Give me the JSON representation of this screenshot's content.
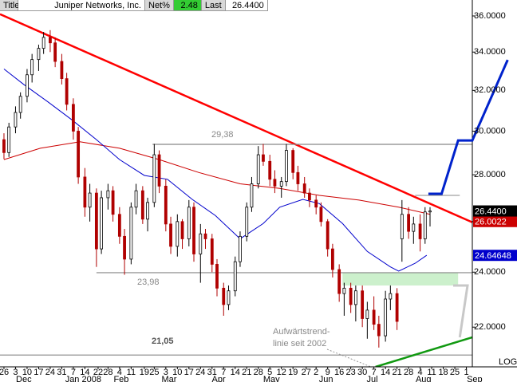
{
  "header": {
    "title_label": "Title",
    "name": "Juniper Networks, Inc.",
    "net_label": "Net%",
    "net_value": "2.48",
    "last_label": "Last",
    "last_value": "26.4400"
  },
  "chart_data": {
    "type": "candlestick",
    "log_scale": true,
    "up_color": "#ffffff",
    "down_color": "#b00000",
    "ylim": [
      20.66,
      36.92
    ],
    "xlim": [
      -2.4,
      283.6
    ],
    "yticks": [
      {
        "value": 36,
        "label": "36.0000"
      },
      {
        "value": 34,
        "label": "34.0000"
      },
      {
        "value": 32,
        "label": "32.0000"
      },
      {
        "value": 30,
        "label": "30.0000"
      },
      {
        "value": 28,
        "label": "28.0000"
      },
      {
        "value": 26,
        "label": "26.0000"
      },
      {
        "value": 24,
        "label": "24.0000"
      },
      {
        "value": 22,
        "label": "22.0000"
      }
    ],
    "xticks": [
      {
        "value": 0,
        "label": "26"
      },
      {
        "value": 7,
        "label": "3"
      },
      {
        "value": 14,
        "label": "10"
      },
      {
        "value": 21,
        "label": "17"
      },
      {
        "value": 28,
        "label": "24"
      },
      {
        "value": 35,
        "label": "31"
      },
      {
        "value": 42,
        "label": "7"
      },
      {
        "value": 49,
        "label": "14"
      },
      {
        "value": 57,
        "label": "22"
      },
      {
        "value": 63,
        "label": "28"
      },
      {
        "value": 70,
        "label": "4"
      },
      {
        "value": 77,
        "label": "11"
      },
      {
        "value": 85,
        "label": "19"
      },
      {
        "value": 91,
        "label": "25"
      },
      {
        "value": 98,
        "label": "3"
      },
      {
        "value": 105,
        "label": "10"
      },
      {
        "value": 112,
        "label": "17"
      },
      {
        "value": 119,
        "label": "24"
      },
      {
        "value": 126,
        "label": "31"
      },
      {
        "value": 133,
        "label": "7"
      },
      {
        "value": 140,
        "label": "14"
      },
      {
        "value": 147,
        "label": "21"
      },
      {
        "value": 154,
        "label": "28"
      },
      {
        "value": 161,
        "label": "5"
      },
      {
        "value": 168,
        "label": "12"
      },
      {
        "value": 175,
        "label": "19"
      },
      {
        "value": 183,
        "label": "27"
      },
      {
        "value": 189,
        "label": "2"
      },
      {
        "value": 196,
        "label": "9"
      },
      {
        "value": 203,
        "label": "16"
      },
      {
        "value": 210,
        "label": "23"
      },
      {
        "value": 217,
        "label": "30"
      },
      {
        "value": 224,
        "label": "7"
      },
      {
        "value": 231,
        "label": "14"
      },
      {
        "value": 238,
        "label": "21"
      },
      {
        "value": 245,
        "label": "28"
      },
      {
        "value": 252,
        "label": "4"
      },
      {
        "value": 259,
        "label": "11"
      },
      {
        "value": 266,
        "label": "18"
      },
      {
        "value": 273,
        "label": "25"
      },
      {
        "value": 280,
        "label": "1"
      }
    ],
    "xmonths": [
      {
        "value": 12,
        "label": "Dec"
      },
      {
        "value": 48,
        "label": "Jan 2008"
      },
      {
        "value": 71,
        "label": "Feb"
      },
      {
        "value": 100,
        "label": "Mar"
      },
      {
        "value": 130,
        "label": "Apr"
      },
      {
        "value": 162,
        "label": "May"
      },
      {
        "value": 195,
        "label": "Jun"
      },
      {
        "value": 223,
        "label": "Jul"
      },
      {
        "value": 254,
        "label": "Aug"
      },
      {
        "value": 285,
        "label": "Sep"
      }
    ],
    "x": [
      0,
      3,
      7,
      10,
      14,
      17,
      21,
      24,
      28,
      31,
      35,
      38,
      42,
      45,
      49,
      52,
      56,
      59,
      63,
      66,
      70,
      73,
      77,
      80,
      84,
      87,
      91,
      94,
      98,
      101,
      105,
      108,
      112,
      115,
      119,
      122,
      126,
      129,
      133,
      136,
      140,
      143,
      147,
      150,
      154,
      157,
      161,
      164,
      168,
      171,
      175,
      178,
      182,
      185,
      189,
      192,
      196,
      199,
      203,
      206,
      210,
      213,
      217,
      220,
      224,
      227,
      231,
      234,
      238,
      241,
      245,
      248,
      252,
      255,
      258
    ],
    "open": [
      29.6,
      29.0,
      30.2,
      30.9,
      31.7,
      32.8,
      33.6,
      34.2,
      34.8,
      34.5,
      33.5,
      32.6,
      31.3,
      30.0,
      27.9,
      26.6,
      27.2,
      24.9,
      27.0,
      27.3,
      26.3,
      25.4,
      24.5,
      26.6,
      27.3,
      26.1,
      26.8,
      28.9,
      27.5,
      25.9,
      25.0,
      26.0,
      25.3,
      26.6,
      24.7,
      25.5,
      25.3,
      24.3,
      23.4,
      22.8,
      23.3,
      24.4,
      25.4,
      26.6,
      27.6,
      28.9,
      28.6,
      27.8,
      27.5,
      27.7,
      29.1,
      28.1,
      27.6,
      27.2,
      26.9,
      26.6,
      26.0,
      24.9,
      24.1,
      23.2,
      23.4,
      22.8,
      23.3,
      22.3,
      22.6,
      22.1,
      21.7,
      23.0,
      23.2,
      25.3,
      26.3,
      25.6,
      25.9,
      25.3,
      26.4
    ],
    "high": [
      29.9,
      30.4,
      31.2,
      31.9,
      33.1,
      33.9,
      34.4,
      35.1,
      35.2,
      34.8,
      33.9,
      32.9,
      31.6,
      30.2,
      28.3,
      27.6,
      27.4,
      27.3,
      27.6,
      27.5,
      26.6,
      25.7,
      26.8,
      27.6,
      27.5,
      27.0,
      29.4,
      29.1,
      27.8,
      26.2,
      26.3,
      26.1,
      26.9,
      26.8,
      25.9,
      25.7,
      25.5,
      24.5,
      23.6,
      23.5,
      24.6,
      25.6,
      26.8,
      27.9,
      29.3,
      29.4,
      28.9,
      28.2,
      27.9,
      29.4,
      29.2,
      28.4,
      27.9,
      27.4,
      27.1,
      26.8,
      26.1,
      25.1,
      24.3,
      23.6,
      23.6,
      23.5,
      23.5,
      22.9,
      23.1,
      22.4,
      23.3,
      23.5,
      23.4,
      26.9,
      26.6,
      26.2,
      26.3,
      26.6,
      26.6
    ],
    "low": [
      28.7,
      28.8,
      29.9,
      30.6,
      31.4,
      32.4,
      33.0,
      33.9,
      34.0,
      33.2,
      32.3,
      31.0,
      29.6,
      27.6,
      26.2,
      26.0,
      24.2,
      24.7,
      26.5,
      26.0,
      25.1,
      23.9,
      24.3,
      26.3,
      25.9,
      25.6,
      26.6,
      27.2,
      25.6,
      24.7,
      24.6,
      24.9,
      25.0,
      24.4,
      23.6,
      24.9,
      24.0,
      23.1,
      22.4,
      22.6,
      23.1,
      24.2,
      25.2,
      26.4,
      27.4,
      28.4,
      27.5,
      27.2,
      27.0,
      27.5,
      27.8,
      27.3,
      27.0,
      26.6,
      26.3,
      25.8,
      24.6,
      23.8,
      22.9,
      22.4,
      22.5,
      22.2,
      22.0,
      21.6,
      21.9,
      21.3,
      21.5,
      22.6,
      21.9,
      24.4,
      25.3,
      25.1,
      24.8,
      25.1,
      25.8
    ],
    "close": [
      29.0,
      30.2,
      30.9,
      31.7,
      32.8,
      33.6,
      34.2,
      34.8,
      34.5,
      33.5,
      32.6,
      31.3,
      30.0,
      27.9,
      26.6,
      27.2,
      24.9,
      27.0,
      27.3,
      26.3,
      25.4,
      24.5,
      26.6,
      27.3,
      26.1,
      26.8,
      28.9,
      27.5,
      25.9,
      25.0,
      26.0,
      25.3,
      26.6,
      24.7,
      25.5,
      25.3,
      24.3,
      23.4,
      22.8,
      23.3,
      24.4,
      25.4,
      26.6,
      27.6,
      28.9,
      28.6,
      27.8,
      27.5,
      27.7,
      29.1,
      28.1,
      27.6,
      27.2,
      26.9,
      26.6,
      26.0,
      24.9,
      24.1,
      23.2,
      23.4,
      22.8,
      23.3,
      22.3,
      22.6,
      22.1,
      21.7,
      23.0,
      23.2,
      22.2,
      26.3,
      25.6,
      25.9,
      25.3,
      26.4,
      26.44
    ],
    "series": [
      {
        "color": "#cc0000",
        "x": [
          0,
          22,
          46,
          70,
          94,
          118,
          143,
          167,
          191,
          215,
          239,
          258
        ],
        "values": [
          28.68,
          29.2,
          29.5,
          29.2,
          28.68,
          28.1,
          27.6,
          27.4,
          27.1,
          26.9,
          26.6,
          26.3
        ]
      },
      {
        "color": "#0000cc",
        "x": [
          0,
          12,
          27,
          41,
          56,
          70,
          85,
          99,
          114,
          128,
          143,
          157,
          167,
          181,
          191,
          205,
          220,
          234,
          239,
          249,
          256
        ],
        "values": [
          33.1,
          32.3,
          31.4,
          30.55,
          29.6,
          28.68,
          27.97,
          27.8,
          26.93,
          26.25,
          25.3,
          25.92,
          26.6,
          26.93,
          26.75,
          25.92,
          24.8,
          24.2,
          24.04,
          24.34,
          24.65
        ]
      }
    ],
    "lines": [
      {
        "color": "#ff0000",
        "width": 2.5,
        "x": [
          -2.4,
          283.6
        ],
        "values": [
          36.1,
          25.97
        ]
      },
      {
        "color": "#888888",
        "width": 1.2,
        "x": [
          90,
          283.6
        ],
        "values": [
          29.38,
          29.38
        ]
      },
      {
        "color": "#888888",
        "width": 1.2,
        "x": [
          56,
          283.6
        ],
        "values": [
          23.98,
          23.98
        ]
      },
      {
        "color": "#888888",
        "width": 1.2,
        "x": [
          -2.4,
          283.6
        ],
        "values": [
          21.05,
          21.05
        ]
      },
      {
        "color": "#888888",
        "width": 1,
        "x": [
          249,
          276
        ],
        "values": [
          27.1,
          27.1
        ]
      },
      {
        "color": "#119911",
        "width": 2.5,
        "x": [
          225,
          283.6
        ],
        "values": [
          20.66,
          21.65
        ]
      }
    ],
    "zone": {
      "color": "#ccf0cc",
      "x": [
        205,
        275
      ],
      "values": [
        23.98,
        23.5
      ]
    },
    "projections": [
      {
        "color": "#0022cc",
        "width": 3,
        "x": [
          257,
          265,
          275,
          283.6,
          305
        ],
        "values": [
          27.17,
          27.17,
          29.56,
          29.56,
          33.58
        ]
      },
      {
        "color": "#c8c8c8",
        "width": 3,
        "x": [
          272,
          280.7,
          276
        ],
        "values": [
          23.5,
          23.5,
          21.65
        ]
      }
    ],
    "price_labels": [
      {
        "value": 26.0022,
        "color": "#cc0000"
      },
      {
        "value": 26.44,
        "label": "26.4400",
        "color": "#000000"
      },
      {
        "value": 24.64648,
        "color": "#0000cc"
      }
    ],
    "annotations": [
      "29,38",
      "23,98",
      "21,05",
      "Aufwärtstrend-",
      "linie seit 2002"
    ],
    "scale_label": "LOG"
  }
}
